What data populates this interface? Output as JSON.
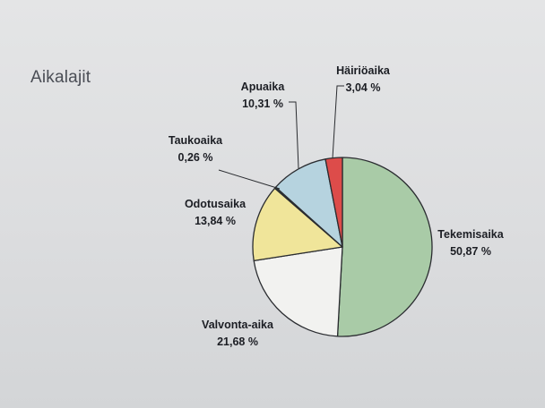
{
  "page": {
    "title": "Aikalajit"
  },
  "chart_data": {
    "type": "pie",
    "title": "",
    "slices": [
      {
        "name": "Tekemisaika",
        "value": 50.87,
        "label": "50,87 %",
        "color": "#a9cba7"
      },
      {
        "name": "Valvonta-aika",
        "value": 21.68,
        "label": "21,68 %",
        "color": "#f2f2f0"
      },
      {
        "name": "Odotusaika",
        "value": 13.84,
        "label": "13,84 %",
        "color": "#f0e59a"
      },
      {
        "name": "Taukoaika",
        "value": 0.26,
        "label": "0,26 %",
        "color": "#3d5a4c"
      },
      {
        "name": "Apuaika",
        "value": 10.31,
        "label": "10,31 %",
        "color": "#b6d3df"
      },
      {
        "name": "Häiriöaika",
        "value": 3.04,
        "label": "3,04 %",
        "color": "#dd4c4a"
      }
    ],
    "start_angle_deg": 0,
    "direction": "clockwise",
    "legend": "none"
  }
}
